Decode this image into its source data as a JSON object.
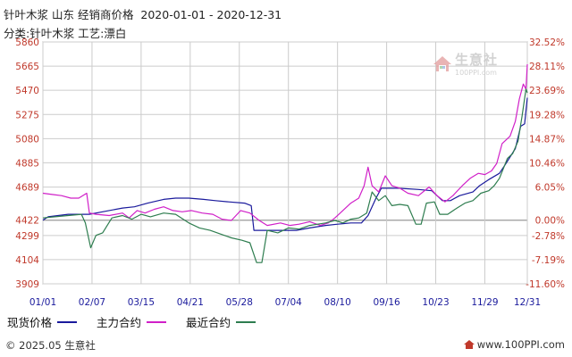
{
  "header": {
    "title": "针叶木浆 山东 经销商价格  2020-01-01 - 2020-12-31",
    "subtitle": "分类:针叶木浆 工艺:漂白"
  },
  "legend": [
    {
      "label": "现货价格",
      "color": "#1a1a9c"
    },
    {
      "label": "主力合约",
      "color": "#d020c8"
    },
    {
      "label": "最近合约",
      "color": "#2e7d4f"
    }
  ],
  "footer": {
    "left": "© 2025.05 生意社",
    "right": "www.100PPI.com"
  },
  "watermark": {
    "cn": "生意社",
    "en": "100PPI.com"
  },
  "colors": {
    "grid": "#cccccc",
    "zero_line": "#999999",
    "left_axis": "#c0392b",
    "right_axis": "#c0392b",
    "x_axis": "#1a1a9c"
  },
  "chart_data": {
    "type": "line",
    "x_tick_labels": [
      "01/01",
      "02/07",
      "03/15",
      "04/21",
      "05/28",
      "07/04",
      "08/10",
      "09/16",
      "10/23",
      "11/29",
      "12/31"
    ],
    "x_tick_dates": [
      "2020-01-01",
      "2020-02-07",
      "2020-03-15",
      "2020-04-21",
      "2020-05-28",
      "2020-07-04",
      "2020-08-10",
      "2020-09-16",
      "2020-10-23",
      "2020-11-29",
      "2020-12-31"
    ],
    "xlim": [
      "2020-01-01",
      "2020-12-31"
    ],
    "y_left": {
      "ticks": [
        5860,
        5665,
        5470,
        5275,
        5080,
        4885,
        4689,
        4422,
        4299,
        4104,
        3909
      ],
      "ylim": [
        3909,
        5860
      ]
    },
    "y_right": {
      "tick_labels": [
        "32.52%",
        "28.11%",
        "23.69%",
        "19.28%",
        "14.87%",
        "10.46%",
        "6.05%",
        "0.00%",
        "-2.78%",
        "-7.19%",
        "-11.60%"
      ],
      "reference_price": 4422
    },
    "grid": true,
    "legend_position": "bottom",
    "series": [
      {
        "name": "现货价格",
        "color": "#1a1a9c",
        "points": [
          [
            "2020-01-01",
            4422
          ],
          [
            "2020-01-05",
            4450
          ],
          [
            "2020-01-20",
            4470
          ],
          [
            "2020-02-05",
            4470
          ],
          [
            "2020-02-15",
            4490
          ],
          [
            "2020-03-01",
            4520
          ],
          [
            "2020-03-10",
            4530
          ],
          [
            "2020-03-20",
            4560
          ],
          [
            "2020-04-01",
            4590
          ],
          [
            "2020-04-10",
            4600
          ],
          [
            "2020-04-20",
            4600
          ],
          [
            "2020-05-01",
            4590
          ],
          [
            "2020-05-10",
            4580
          ],
          [
            "2020-05-20",
            4570
          ],
          [
            "2020-06-01",
            4560
          ],
          [
            "2020-06-06",
            4540
          ],
          [
            "2020-06-08",
            4340
          ],
          [
            "2020-06-20",
            4340
          ],
          [
            "2020-07-01",
            4340
          ],
          [
            "2020-07-10",
            4340
          ],
          [
            "2020-07-20",
            4360
          ],
          [
            "2020-08-01",
            4380
          ],
          [
            "2020-08-10",
            4390
          ],
          [
            "2020-08-20",
            4400
          ],
          [
            "2020-08-28",
            4400
          ],
          [
            "2020-09-02",
            4460
          ],
          [
            "2020-09-08",
            4600
          ],
          [
            "2020-09-12",
            4680
          ],
          [
            "2020-09-25",
            4680
          ],
          [
            "2020-10-10",
            4670
          ],
          [
            "2020-10-20",
            4660
          ],
          [
            "2020-10-28",
            4580
          ],
          [
            "2020-11-03",
            4580
          ],
          [
            "2020-11-10",
            4620
          ],
          [
            "2020-11-20",
            4650
          ],
          [
            "2020-11-25",
            4700
          ],
          [
            "2020-12-02",
            4750
          ],
          [
            "2020-12-10",
            4800
          ],
          [
            "2020-12-15",
            4880
          ],
          [
            "2020-12-22",
            5000
          ],
          [
            "2020-12-26",
            5180
          ],
          [
            "2020-12-29",
            5200
          ],
          [
            "2020-12-31",
            5410
          ]
        ]
      },
      {
        "name": "主力合约",
        "color": "#d020c8",
        "points": [
          [
            "2020-01-01",
            4640
          ],
          [
            "2020-01-08",
            4630
          ],
          [
            "2020-01-15",
            4620
          ],
          [
            "2020-01-22",
            4600
          ],
          [
            "2020-01-28",
            4600
          ],
          [
            "2020-02-03",
            4640
          ],
          [
            "2020-02-05",
            4480
          ],
          [
            "2020-02-10",
            4470
          ],
          [
            "2020-02-20",
            4460
          ],
          [
            "2020-03-01",
            4480
          ],
          [
            "2020-03-06",
            4440
          ],
          [
            "2020-03-12",
            4500
          ],
          [
            "2020-03-18",
            4480
          ],
          [
            "2020-03-25",
            4510
          ],
          [
            "2020-04-01",
            4530
          ],
          [
            "2020-04-08",
            4500
          ],
          [
            "2020-04-15",
            4490
          ],
          [
            "2020-04-22",
            4500
          ],
          [
            "2020-04-30",
            4480
          ],
          [
            "2020-05-08",
            4470
          ],
          [
            "2020-05-15",
            4430
          ],
          [
            "2020-05-22",
            4420
          ],
          [
            "2020-05-29",
            4500
          ],
          [
            "2020-06-05",
            4480
          ],
          [
            "2020-06-12",
            4420
          ],
          [
            "2020-06-18",
            4380
          ],
          [
            "2020-06-28",
            4400
          ],
          [
            "2020-07-05",
            4380
          ],
          [
            "2020-07-12",
            4390
          ],
          [
            "2020-07-20",
            4410
          ],
          [
            "2020-07-28",
            4380
          ],
          [
            "2020-08-03",
            4400
          ],
          [
            "2020-08-08",
            4440
          ],
          [
            "2020-08-14",
            4500
          ],
          [
            "2020-08-20",
            4560
          ],
          [
            "2020-08-26",
            4600
          ],
          [
            "2020-08-30",
            4700
          ],
          [
            "2020-09-02",
            4850
          ],
          [
            "2020-09-05",
            4700
          ],
          [
            "2020-09-10",
            4650
          ],
          [
            "2020-09-15",
            4780
          ],
          [
            "2020-09-20",
            4700
          ],
          [
            "2020-09-26",
            4680
          ],
          [
            "2020-10-02",
            4640
          ],
          [
            "2020-10-10",
            4620
          ],
          [
            "2020-10-18",
            4690
          ],
          [
            "2020-10-24",
            4620
          ],
          [
            "2020-10-30",
            4570
          ],
          [
            "2020-11-05",
            4620
          ],
          [
            "2020-11-12",
            4700
          ],
          [
            "2020-11-18",
            4760
          ],
          [
            "2020-11-24",
            4800
          ],
          [
            "2020-11-29",
            4790
          ],
          [
            "2020-12-04",
            4820
          ],
          [
            "2020-12-08",
            4880
          ],
          [
            "2020-12-12",
            5040
          ],
          [
            "2020-12-18",
            5100
          ],
          [
            "2020-12-22",
            5220
          ],
          [
            "2020-12-25",
            5400
          ],
          [
            "2020-12-28",
            5520
          ],
          [
            "2020-12-30",
            5480
          ],
          [
            "2020-12-31",
            5680
          ]
        ]
      },
      {
        "name": "最近合约",
        "color": "#2e7d4f",
        "points": [
          [
            "2020-01-01",
            4440
          ],
          [
            "2020-01-10",
            4450
          ],
          [
            "2020-01-20",
            4460
          ],
          [
            "2020-01-30",
            4470
          ],
          [
            "2020-02-02",
            4400
          ],
          [
            "2020-02-06",
            4200
          ],
          [
            "2020-02-10",
            4300
          ],
          [
            "2020-02-15",
            4320
          ],
          [
            "2020-02-22",
            4440
          ],
          [
            "2020-03-01",
            4460
          ],
          [
            "2020-03-08",
            4430
          ],
          [
            "2020-03-15",
            4470
          ],
          [
            "2020-03-22",
            4450
          ],
          [
            "2020-04-01",
            4480
          ],
          [
            "2020-04-10",
            4470
          ],
          [
            "2020-04-20",
            4400
          ],
          [
            "2020-04-28",
            4360
          ],
          [
            "2020-05-06",
            4340
          ],
          [
            "2020-05-14",
            4310
          ],
          [
            "2020-05-22",
            4280
          ],
          [
            "2020-05-30",
            4260
          ],
          [
            "2020-06-05",
            4240
          ],
          [
            "2020-06-10",
            4080
          ],
          [
            "2020-06-14",
            4080
          ],
          [
            "2020-06-18",
            4340
          ],
          [
            "2020-06-26",
            4320
          ],
          [
            "2020-07-04",
            4360
          ],
          [
            "2020-07-12",
            4350
          ],
          [
            "2020-07-20",
            4380
          ],
          [
            "2020-07-26",
            4390
          ],
          [
            "2020-08-01",
            4400
          ],
          [
            "2020-08-08",
            4420
          ],
          [
            "2020-08-14",
            4400
          ],
          [
            "2020-08-20",
            4430
          ],
          [
            "2020-08-26",
            4440
          ],
          [
            "2020-09-01",
            4480
          ],
          [
            "2020-09-05",
            4650
          ],
          [
            "2020-09-10",
            4580
          ],
          [
            "2020-09-15",
            4620
          ],
          [
            "2020-09-20",
            4540
          ],
          [
            "2020-09-26",
            4550
          ],
          [
            "2020-10-02",
            4540
          ],
          [
            "2020-10-08",
            4390
          ],
          [
            "2020-10-12",
            4390
          ],
          [
            "2020-10-16",
            4560
          ],
          [
            "2020-10-22",
            4570
          ],
          [
            "2020-10-26",
            4470
          ],
          [
            "2020-11-01",
            4470
          ],
          [
            "2020-11-08",
            4520
          ],
          [
            "2020-11-14",
            4560
          ],
          [
            "2020-11-20",
            4580
          ],
          [
            "2020-11-26",
            4640
          ],
          [
            "2020-12-02",
            4660
          ],
          [
            "2020-12-06",
            4700
          ],
          [
            "2020-12-10",
            4760
          ],
          [
            "2020-12-16",
            4920
          ],
          [
            "2020-12-20",
            4960
          ],
          [
            "2020-12-24",
            5060
          ],
          [
            "2020-12-27",
            5260
          ],
          [
            "2020-12-30",
            5480
          ],
          [
            "2020-12-31",
            5450
          ]
        ]
      }
    ]
  }
}
